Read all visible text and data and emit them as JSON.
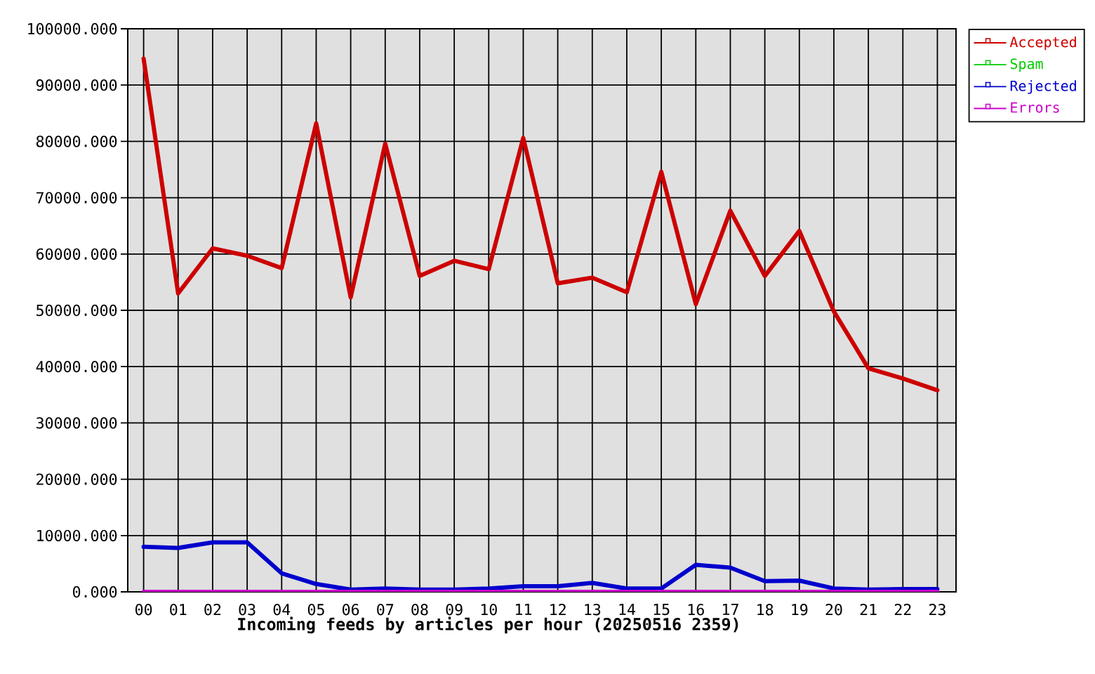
{
  "chart_data": {
    "type": "line",
    "title": "Incoming feeds by articles per hour (20250516 2359)",
    "categories": [
      "00",
      "01",
      "02",
      "03",
      "04",
      "05",
      "06",
      "07",
      "08",
      "09",
      "10",
      "11",
      "12",
      "13",
      "14",
      "15",
      "16",
      "17",
      "18",
      "19",
      "20",
      "21",
      "22",
      "23"
    ],
    "series": [
      {
        "name": "Accepted",
        "color": "#cc0000",
        "values": [
          94700,
          53000,
          61000,
          59700,
          57500,
          83200,
          52300,
          79600,
          56100,
          58800,
          57300,
          80600,
          54800,
          55800,
          53200,
          74600,
          51100,
          67700,
          56100,
          64100,
          49800,
          39700,
          37900,
          35800
        ]
      },
      {
        "name": "Spam",
        "color": "#00cc00",
        "values": [
          null,
          null,
          null,
          null,
          null,
          null,
          null,
          null,
          null,
          null,
          null,
          null,
          null,
          null,
          null,
          null,
          null,
          null,
          null,
          null,
          null,
          null,
          null,
          null
        ]
      },
      {
        "name": "Rejected",
        "color": "#0000cc",
        "values": [
          8000,
          7800,
          8800,
          8800,
          3300,
          1400,
          400,
          600,
          400,
          400,
          600,
          1000,
          1000,
          1600,
          600,
          600,
          4800,
          4300,
          1900,
          2000,
          600,
          400,
          500,
          500
        ]
      },
      {
        "name": "Errors",
        "color": "#cc00cc",
        "values": [
          0,
          0,
          0,
          0,
          0,
          0,
          0,
          0,
          0,
          0,
          0,
          0,
          0,
          0,
          0,
          0,
          0,
          0,
          0,
          0,
          0,
          0,
          0,
          0
        ]
      }
    ],
    "ylim": [
      0,
      100000
    ],
    "yticks": [
      {
        "value": 0,
        "label": "0.000"
      },
      {
        "value": 10000,
        "label": "10000.000"
      },
      {
        "value": 20000,
        "label": "20000.000"
      },
      {
        "value": 30000,
        "label": "30000.000"
      },
      {
        "value": 40000,
        "label": "40000.000"
      },
      {
        "value": 50000,
        "label": "50000.000"
      },
      {
        "value": 60000,
        "label": "60000.000"
      },
      {
        "value": 70000,
        "label": "70000.000"
      },
      {
        "value": 80000,
        "label": "80000.000"
      },
      {
        "value": 90000,
        "label": "90000.000"
      },
      {
        "value": 100000,
        "label": "100000.000"
      }
    ],
    "grid": true,
    "legend": "top right"
  }
}
